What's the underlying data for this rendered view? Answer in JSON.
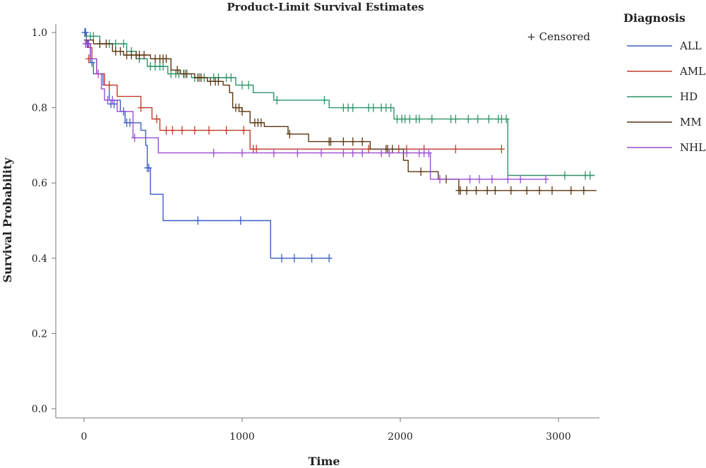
{
  "chart_data": {
    "type": "line",
    "subtype": "step",
    "title": "Product-Limit Survival Estimates",
    "xlabel": "Time",
    "ylabel": "Survival Probability",
    "xlim": [
      -180,
      3250
    ],
    "ylim": [
      -0.03,
      1.02
    ],
    "xticks": [
      0,
      1000,
      2000,
      3000
    ],
    "xtick_labels": [
      "0",
      "1000",
      "2000",
      "3000"
    ],
    "yticks": [
      0.0,
      0.2,
      0.4,
      0.6,
      0.8,
      1.0
    ],
    "ytick_labels": [
      "0.0",
      "0.2",
      "0.4",
      "0.6",
      "0.8",
      "1.0"
    ],
    "grid": false,
    "legend": {
      "title": "Diagnosis",
      "position": "right"
    },
    "censor_note": "+ Censored",
    "series": [
      {
        "name": "ALL",
        "color": "#3a5fc4",
        "steps": [
          [
            0,
            1.0
          ],
          [
            15,
            0.97
          ],
          [
            40,
            0.92
          ],
          [
            60,
            0.89
          ],
          [
            120,
            0.86
          ],
          [
            160,
            0.82
          ],
          [
            230,
            0.79
          ],
          [
            260,
            0.76
          ],
          [
            360,
            0.74
          ],
          [
            390,
            0.7
          ],
          [
            400,
            0.64
          ],
          [
            410,
            0.64
          ],
          [
            420,
            0.57
          ],
          [
            500,
            0.5
          ],
          [
            1180,
            0.4
          ],
          [
            1560,
            0.4
          ]
        ],
        "censored": [
          [
            5,
            1.0
          ],
          [
            10,
            1.0
          ],
          [
            20,
            0.97
          ],
          [
            25,
            0.97
          ],
          [
            50,
            0.92
          ],
          [
            170,
            0.81
          ],
          [
            190,
            0.81
          ],
          [
            250,
            0.79
          ],
          [
            270,
            0.76
          ],
          [
            290,
            0.76
          ],
          [
            400,
            0.64
          ],
          [
            410,
            0.64
          ],
          [
            720,
            0.5
          ],
          [
            990,
            0.5
          ],
          [
            1250,
            0.4
          ],
          [
            1330,
            0.4
          ],
          [
            1440,
            0.4
          ],
          [
            1550,
            0.4
          ]
        ]
      },
      {
        "name": "AML",
        "color": "#c0392b",
        "steps": [
          [
            0,
            0.98
          ],
          [
            20,
            0.96
          ],
          [
            50,
            0.93
          ],
          [
            80,
            0.89
          ],
          [
            130,
            0.86
          ],
          [
            210,
            0.83
          ],
          [
            360,
            0.8
          ],
          [
            430,
            0.77
          ],
          [
            480,
            0.74
          ],
          [
            1050,
            0.69
          ],
          [
            2650,
            0.69
          ]
        ],
        "censored": [
          [
            30,
            0.93
          ],
          [
            160,
            0.86
          ],
          [
            360,
            0.8
          ],
          [
            460,
            0.77
          ],
          [
            520,
            0.74
          ],
          [
            560,
            0.74
          ],
          [
            620,
            0.74
          ],
          [
            700,
            0.74
          ],
          [
            790,
            0.74
          ],
          [
            900,
            0.74
          ],
          [
            1010,
            0.74
          ],
          [
            1070,
            0.69
          ],
          [
            1090,
            0.69
          ],
          [
            1800,
            0.69
          ],
          [
            1990,
            0.69
          ],
          [
            2040,
            0.69
          ],
          [
            2150,
            0.69
          ],
          [
            2350,
            0.69
          ],
          [
            2640,
            0.69
          ]
        ]
      },
      {
        "name": "HD",
        "color": "#2e9467",
        "steps": [
          [
            0,
            0.99
          ],
          [
            100,
            0.97
          ],
          [
            270,
            0.95
          ],
          [
            330,
            0.93
          ],
          [
            400,
            0.91
          ],
          [
            530,
            0.89
          ],
          [
            680,
            0.88
          ],
          [
            960,
            0.86
          ],
          [
            1070,
            0.84
          ],
          [
            1200,
            0.82
          ],
          [
            1550,
            0.8
          ],
          [
            1960,
            0.77
          ],
          [
            2680,
            0.62
          ],
          [
            3230,
            0.62
          ]
        ],
        "censored": [
          [
            40,
            0.99
          ],
          [
            60,
            0.99
          ],
          [
            160,
            0.97
          ],
          [
            200,
            0.97
          ],
          [
            250,
            0.97
          ],
          [
            300,
            0.95
          ],
          [
            350,
            0.93
          ],
          [
            420,
            0.91
          ],
          [
            450,
            0.91
          ],
          [
            480,
            0.91
          ],
          [
            500,
            0.91
          ],
          [
            550,
            0.89
          ],
          [
            580,
            0.89
          ],
          [
            600,
            0.89
          ],
          [
            640,
            0.89
          ],
          [
            700,
            0.88
          ],
          [
            730,
            0.88
          ],
          [
            760,
            0.88
          ],
          [
            820,
            0.88
          ],
          [
            850,
            0.88
          ],
          [
            900,
            0.88
          ],
          [
            930,
            0.88
          ],
          [
            1000,
            0.86
          ],
          [
            1040,
            0.86
          ],
          [
            1220,
            0.82
          ],
          [
            1520,
            0.82
          ],
          [
            1640,
            0.8
          ],
          [
            1670,
            0.8
          ],
          [
            1700,
            0.8
          ],
          [
            1800,
            0.8
          ],
          [
            1830,
            0.8
          ],
          [
            1880,
            0.8
          ],
          [
            1910,
            0.8
          ],
          [
            1940,
            0.8
          ],
          [
            1980,
            0.77
          ],
          [
            2010,
            0.77
          ],
          [
            2030,
            0.77
          ],
          [
            2060,
            0.77
          ],
          [
            2100,
            0.77
          ],
          [
            2120,
            0.77
          ],
          [
            2200,
            0.77
          ],
          [
            2320,
            0.77
          ],
          [
            2350,
            0.77
          ],
          [
            2430,
            0.77
          ],
          [
            2490,
            0.77
          ],
          [
            2560,
            0.77
          ],
          [
            2620,
            0.77
          ],
          [
            2640,
            0.77
          ],
          [
            2670,
            0.77
          ],
          [
            3040,
            0.62
          ],
          [
            3170,
            0.62
          ],
          [
            3200,
            0.62
          ]
        ]
      },
      {
        "name": "MM",
        "color": "#5a3510",
        "steps": [
          [
            0,
            0.98
          ],
          [
            60,
            0.97
          ],
          [
            180,
            0.95
          ],
          [
            250,
            0.94
          ],
          [
            420,
            0.93
          ],
          [
            550,
            0.9
          ],
          [
            610,
            0.89
          ],
          [
            700,
            0.88
          ],
          [
            780,
            0.87
          ],
          [
            880,
            0.86
          ],
          [
            920,
            0.84
          ],
          [
            940,
            0.8
          ],
          [
            1000,
            0.79
          ],
          [
            1050,
            0.76
          ],
          [
            1140,
            0.75
          ],
          [
            1290,
            0.73
          ],
          [
            1420,
            0.71
          ],
          [
            1810,
            0.69
          ],
          [
            2020,
            0.66
          ],
          [
            2050,
            0.63
          ],
          [
            2240,
            0.61
          ],
          [
            2370,
            0.58
          ],
          [
            3240,
            0.58
          ]
        ],
        "censored": [
          [
            100,
            0.97
          ],
          [
            140,
            0.97
          ],
          [
            200,
            0.95
          ],
          [
            230,
            0.95
          ],
          [
            270,
            0.94
          ],
          [
            300,
            0.94
          ],
          [
            330,
            0.94
          ],
          [
            350,
            0.94
          ],
          [
            380,
            0.94
          ],
          [
            450,
            0.93
          ],
          [
            480,
            0.93
          ],
          [
            500,
            0.93
          ],
          [
            520,
            0.93
          ],
          [
            590,
            0.9
          ],
          [
            630,
            0.89
          ],
          [
            650,
            0.89
          ],
          [
            720,
            0.88
          ],
          [
            740,
            0.88
          ],
          [
            800,
            0.87
          ],
          [
            830,
            0.87
          ],
          [
            850,
            0.87
          ],
          [
            960,
            0.8
          ],
          [
            980,
            0.8
          ],
          [
            1000,
            0.79
          ],
          [
            1080,
            0.76
          ],
          [
            1100,
            0.76
          ],
          [
            1120,
            0.76
          ],
          [
            1300,
            0.73
          ],
          [
            1550,
            0.71
          ],
          [
            1560,
            0.71
          ],
          [
            1640,
            0.71
          ],
          [
            1700,
            0.71
          ],
          [
            1760,
            0.71
          ],
          [
            1910,
            0.69
          ],
          [
            1920,
            0.69
          ],
          [
            1950,
            0.69
          ],
          [
            2130,
            0.63
          ],
          [
            2290,
            0.61
          ],
          [
            2370,
            0.58
          ],
          [
            2380,
            0.58
          ],
          [
            2420,
            0.58
          ],
          [
            2480,
            0.58
          ],
          [
            2550,
            0.58
          ],
          [
            2600,
            0.58
          ],
          [
            2700,
            0.58
          ],
          [
            2800,
            0.58
          ],
          [
            2880,
            0.58
          ],
          [
            2960,
            0.58
          ],
          [
            3080,
            0.58
          ],
          [
            3160,
            0.58
          ]
        ]
      },
      {
        "name": "NHL",
        "color": "#9a4ed0",
        "steps": [
          [
            0,
            0.97
          ],
          [
            40,
            0.93
          ],
          [
            80,
            0.89
          ],
          [
            110,
            0.85
          ],
          [
            130,
            0.82
          ],
          [
            210,
            0.79
          ],
          [
            310,
            0.72
          ],
          [
            470,
            0.68
          ],
          [
            2190,
            0.61
          ],
          [
            2930,
            0.61
          ]
        ],
        "censored": [
          [
            10,
            0.97
          ],
          [
            20,
            0.97
          ],
          [
            30,
            0.97
          ],
          [
            90,
            0.89
          ],
          [
            150,
            0.82
          ],
          [
            180,
            0.82
          ],
          [
            320,
            0.72
          ],
          [
            820,
            0.68
          ],
          [
            1000,
            0.68
          ],
          [
            1200,
            0.68
          ],
          [
            1350,
            0.68
          ],
          [
            1500,
            0.68
          ],
          [
            1640,
            0.68
          ],
          [
            1700,
            0.68
          ],
          [
            1760,
            0.68
          ],
          [
            1880,
            0.68
          ],
          [
            1930,
            0.68
          ],
          [
            2040,
            0.68
          ],
          [
            2120,
            0.68
          ],
          [
            2150,
            0.68
          ],
          [
            2180,
            0.68
          ],
          [
            2250,
            0.61
          ],
          [
            2440,
            0.61
          ],
          [
            2500,
            0.61
          ],
          [
            2580,
            0.61
          ],
          [
            2680,
            0.61
          ],
          [
            2760,
            0.61
          ],
          [
            2920,
            0.61
          ]
        ]
      }
    ]
  }
}
